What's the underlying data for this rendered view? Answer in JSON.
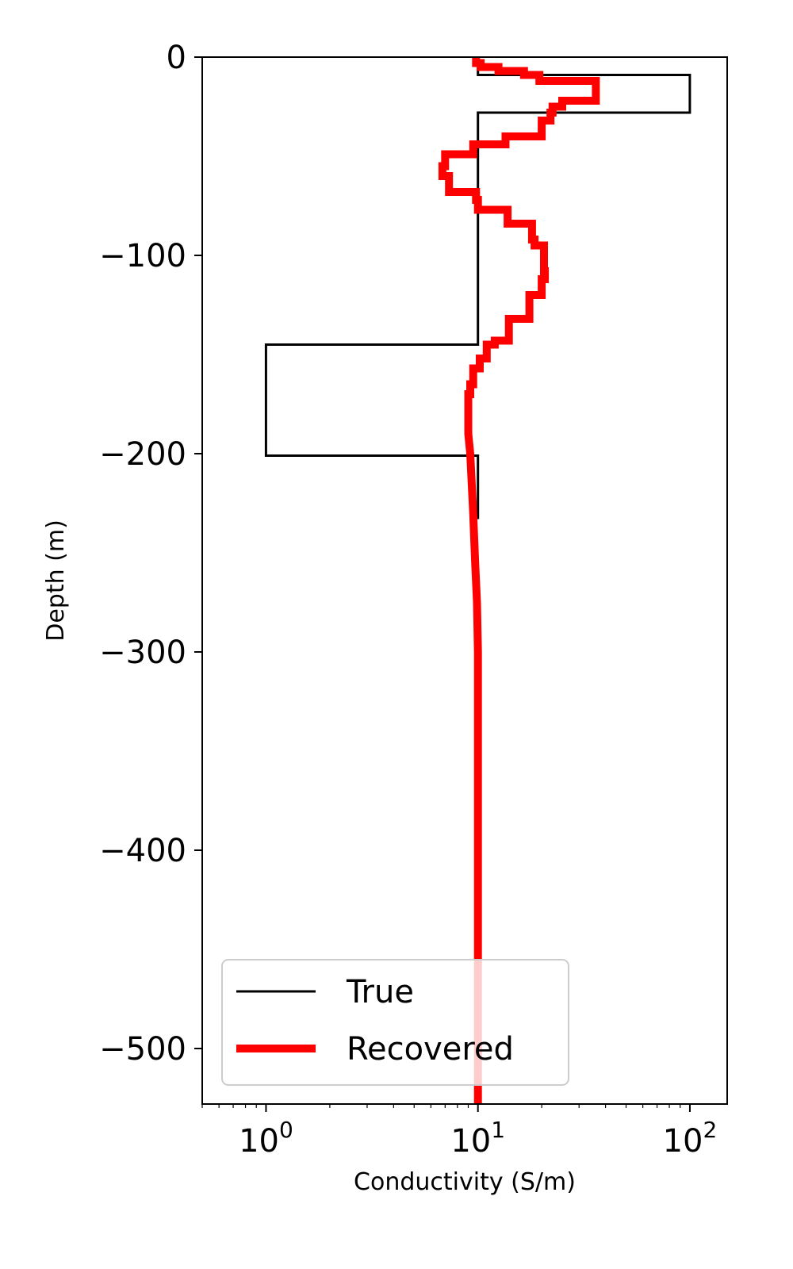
{
  "chart_data": {
    "type": "line",
    "xlabel": "Conductivity (S/m)",
    "ylabel": "Depth (m)",
    "xscale": "log",
    "xlim": [
      0.5,
      150
    ],
    "ylim": [
      -528,
      0
    ],
    "grid": false,
    "legend": {
      "placement": "bottom-left"
    },
    "x_ticks": [
      {
        "base": "10",
        "exp": "0",
        "value": 1
      },
      {
        "base": "10",
        "exp": "1",
        "value": 10
      },
      {
        "base": "10",
        "exp": "2",
        "value": 100
      }
    ],
    "y_ticks": [
      {
        "label": "0",
        "value": 0
      },
      {
        "label": "−100",
        "value": -100
      },
      {
        "label": "−200",
        "value": -200
      },
      {
        "label": "−300",
        "value": -300
      },
      {
        "label": "−400",
        "value": -400
      },
      {
        "label": "−500",
        "value": -500
      }
    ],
    "series": [
      {
        "name": "True",
        "color": "#000000",
        "style": "step",
        "x": [
          10,
          10,
          100,
          100,
          10,
          10,
          1,
          1,
          10,
          10
        ],
        "y": [
          0,
          -9,
          -9,
          -28,
          -28,
          -145,
          -145,
          -201,
          -201,
          -233
        ]
      },
      {
        "name": "Recovered",
        "color": "#ff0000",
        "style": "step",
        "x": [
          9.8,
          9.8,
          10.3,
          10.3,
          12.5,
          12.5,
          16.5,
          16.5,
          19.5,
          19.5,
          36,
          36,
          36,
          36,
          25,
          25,
          22.5,
          22.5,
          22,
          22,
          20,
          20,
          13.5,
          13.5,
          9.5,
          9.5,
          7,
          7,
          6.8,
          6.8,
          7.3,
          7.3,
          9.8,
          9.8,
          10,
          10,
          13.8,
          13.8,
          18,
          18,
          18.5,
          18.5,
          20.5,
          20.5,
          20.7,
          20.7,
          20,
          20,
          17.5,
          17.5,
          14,
          14,
          12,
          12,
          11,
          11,
          10.2,
          10.2,
          9.5,
          9.5,
          9.2,
          9.2,
          9,
          9,
          9,
          9.2,
          9.2,
          9.5,
          9.5,
          9.7,
          9.7,
          9.9,
          9.9,
          10,
          10
        ],
        "y": [
          0,
          -3,
          -3,
          -5,
          -5,
          -7,
          -7,
          -9,
          -9,
          -12,
          -12,
          -20,
          -20,
          -22,
          -22,
          -25,
          -25,
          -28,
          -28,
          -32,
          -32,
          -40,
          -40,
          -44,
          -44,
          -49,
          -49,
          -55,
          -55,
          -60,
          -60,
          -68,
          -68,
          -72,
          -72,
          -77,
          -77,
          -84,
          -84,
          -92,
          -92,
          -95,
          -95,
          -108,
          -108,
          -112,
          -112,
          -120,
          -120,
          -132,
          -132,
          -143,
          -143,
          -145,
          -145,
          -152,
          -152,
          -157,
          -157,
          -165,
          -165,
          -170,
          -170,
          -190,
          -190,
          -200,
          -200,
          -230,
          -230,
          -255,
          -255,
          -275,
          -275,
          -300,
          -528
        ]
      }
    ]
  }
}
